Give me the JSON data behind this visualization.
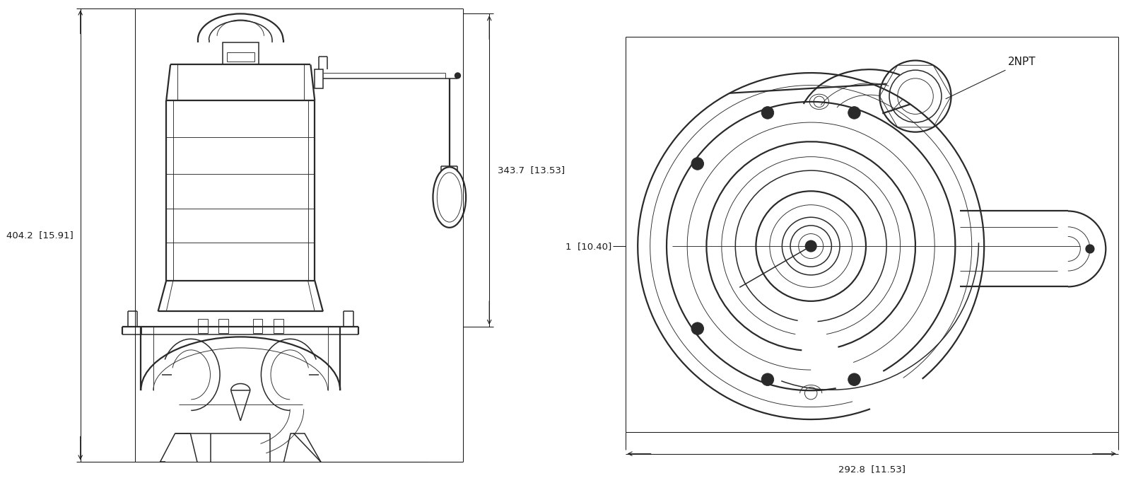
{
  "bg_color": "#ffffff",
  "line_color": "#2a2a2a",
  "dim_color": "#1a1a1a",
  "fig_width": 16.0,
  "fig_height": 7.0,
  "left_view": {
    "label_404": "404.2  [15.91]",
    "label_343": "343.7  [13.53]"
  },
  "right_view": {
    "label_292": "292.8  [11.53]",
    "label_1": "1  [10.40]",
    "label_2npt": "2NPT"
  }
}
